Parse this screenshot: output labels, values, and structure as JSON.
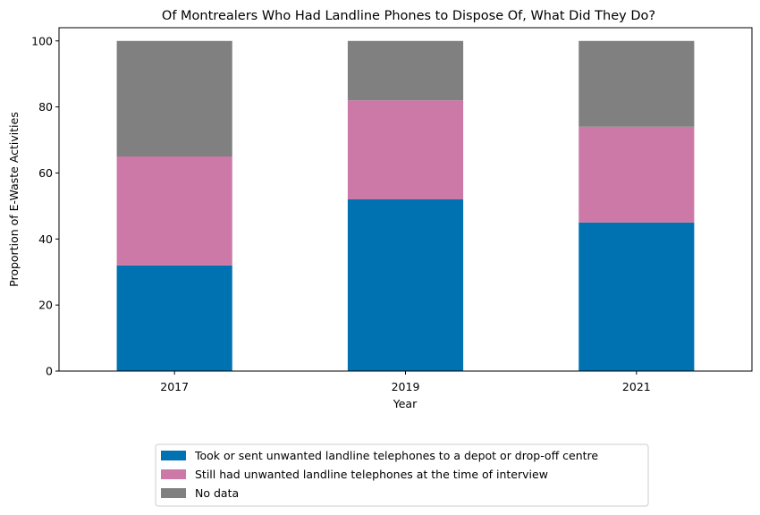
{
  "chart_data": {
    "type": "bar",
    "stacked": true,
    "title": "Of Montrealers Who Had Landline Phones to Dispose Of, What Did They Do?",
    "xlabel": "Year",
    "ylabel": "Proportion of E-Waste Activities",
    "categories": [
      "2017",
      "2019",
      "2021"
    ],
    "ylim": [
      0,
      104
    ],
    "yticks": [
      0,
      20,
      40,
      60,
      80,
      100
    ],
    "grid": false,
    "legend_position": "bottom-center",
    "series": [
      {
        "name": "Took or sent unwanted landline telephones to a depot or drop-off centre",
        "values": [
          32,
          52,
          45
        ],
        "color": "#0072b2"
      },
      {
        "name": "Still had unwanted landline telephones at the time of interview",
        "values": [
          33,
          30,
          29
        ],
        "color": "#cc79a7"
      },
      {
        "name": "No data",
        "values": [
          35,
          18,
          26
        ],
        "color": "#808080"
      }
    ]
  }
}
